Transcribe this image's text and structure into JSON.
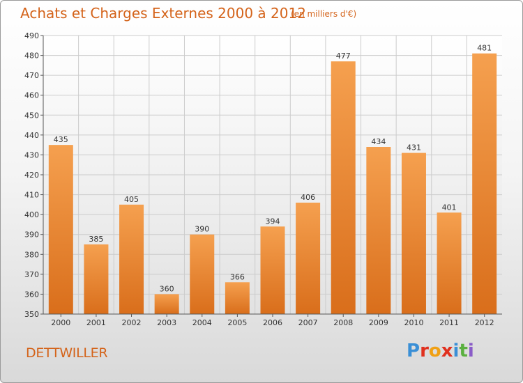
{
  "title": "Achats et Charges Externes 2000 à 2012",
  "subtitle": "(en milliers d'€)",
  "city": "DETTWILLER",
  "brand": "Proxiti",
  "colors": {
    "accent": "#d4631a",
    "bar_top": "#f5a04f",
    "bar_bottom": "#d96e1b",
    "grid": "#cccccc"
  },
  "chart_data": {
    "type": "bar",
    "categories": [
      "2000",
      "2001",
      "2002",
      "2003",
      "2004",
      "2005",
      "2006",
      "2007",
      "2008",
      "2009",
      "2010",
      "2011",
      "2012"
    ],
    "values": [
      435,
      385,
      405,
      360,
      390,
      366,
      394,
      406,
      477,
      434,
      431,
      401,
      481
    ],
    "ylim": [
      350,
      490
    ],
    "yticks": [
      350,
      360,
      370,
      380,
      390,
      400,
      410,
      420,
      430,
      440,
      450,
      460,
      470,
      480,
      490
    ],
    "grid": true
  }
}
